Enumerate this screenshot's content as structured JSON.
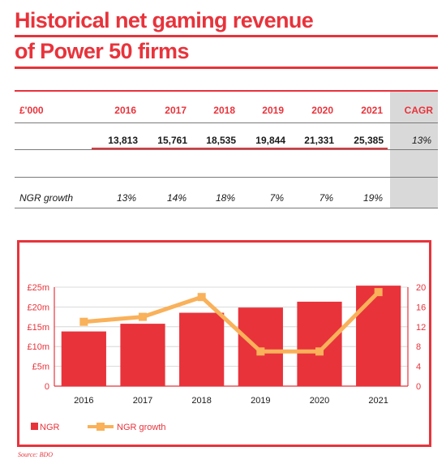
{
  "title": {
    "line1": "Historical net gaming revenue",
    "line2": "of Power 50 firms"
  },
  "table": {
    "corner_label": "£'000",
    "years": [
      "2016",
      "2017",
      "2018",
      "2019",
      "2020",
      "2021"
    ],
    "cagr_label": "CAGR",
    "ngr_values": [
      "13,813",
      "15,761",
      "18,535",
      "19,844",
      "21,331",
      "25,385"
    ],
    "cagr_value": "13%",
    "growth_label": "NGR growth",
    "growth_values": [
      "13%",
      "14%",
      "18%",
      "7%",
      "7%",
      "19%"
    ]
  },
  "colors": {
    "accent": "#e8333b",
    "line": "#f9b15a",
    "cagr_bg": "#d9d9d9"
  },
  "chart_data": {
    "type": "bar",
    "categories": [
      "2016",
      "2017",
      "2018",
      "2019",
      "2020",
      "2021"
    ],
    "series": [
      {
        "name": "NGR",
        "type": "bar",
        "axis": "left",
        "values": [
          13.813,
          15.761,
          18.535,
          19.844,
          21.331,
          25.385
        ]
      },
      {
        "name": "NGR growth",
        "type": "line",
        "axis": "right",
        "values": [
          13,
          14,
          18,
          7,
          7,
          19
        ]
      }
    ],
    "y_left": {
      "ylim": [
        0,
        25
      ],
      "ticks": [
        "0",
        "£5m",
        "£10m",
        "£15m",
        "£20m",
        "£25m"
      ],
      "tick_values": [
        0,
        5,
        10,
        15,
        20,
        25
      ]
    },
    "y_right": {
      "ylim": [
        0,
        20
      ],
      "ticks": [
        "0",
        "4",
        "8",
        "12",
        "16",
        "20"
      ],
      "tick_values": [
        0,
        4,
        8,
        12,
        16,
        20
      ]
    },
    "grid": true,
    "legend_position": "bottom-left",
    "title": "",
    "xlabel": "",
    "ylabel": ""
  },
  "source": "Source: BDO"
}
